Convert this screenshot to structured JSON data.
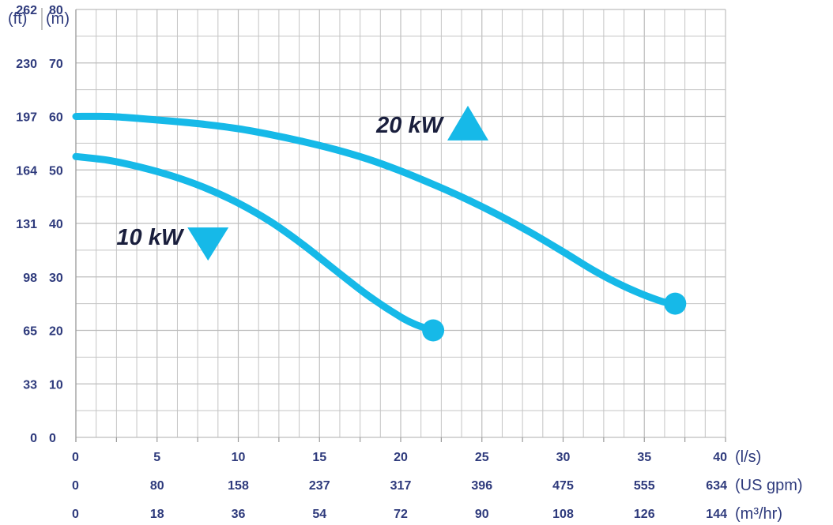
{
  "chart_data": {
    "type": "line",
    "title": "",
    "grid": true,
    "colors": {
      "curve": "#16b9e8",
      "text": "#2e3a7c",
      "label": "#1a1f3d",
      "grid": "#c4c4c4"
    },
    "x_axes": [
      {
        "unit": "(l/s)",
        "ticks": [
          "0",
          "5",
          "10",
          "15",
          "20",
          "25",
          "30",
          "35",
          "40"
        ]
      },
      {
        "unit": "(US gpm)",
        "ticks": [
          "0",
          "80",
          "158",
          "237",
          "317",
          "396",
          "475",
          "555",
          "634"
        ]
      },
      {
        "unit": "(m³/hr)",
        "ticks": [
          "0",
          "18",
          "36",
          "54",
          "72",
          "90",
          "108",
          "126",
          "144"
        ]
      }
    ],
    "y_axes": [
      {
        "unit": "(ft)",
        "ticks": [
          "0",
          "33",
          "65",
          "98",
          "131",
          "164",
          "197",
          "230",
          "262"
        ]
      },
      {
        "unit": "(m)",
        "ticks": [
          "0",
          "10",
          "20",
          "30",
          "40",
          "50",
          "60",
          "70",
          "80"
        ]
      }
    ],
    "xlim": [
      0,
      40
    ],
    "ylim": [
      0,
      80
    ],
    "series": [
      {
        "name": "10 kW",
        "marker": "triangle-down",
        "label_at": [
          2.5,
          36
        ],
        "points": [
          [
            0,
            52.5
          ],
          [
            2,
            51.8
          ],
          [
            4,
            50.5
          ],
          [
            6,
            48.8
          ],
          [
            8,
            46.6
          ],
          [
            10,
            43.8
          ],
          [
            12,
            40.3
          ],
          [
            14,
            36
          ],
          [
            16,
            31.2
          ],
          [
            18,
            26.5
          ],
          [
            20,
            22.5
          ],
          [
            21,
            21
          ],
          [
            22,
            20
          ]
        ]
      },
      {
        "name": "20 kW",
        "marker": "triangle-up",
        "label_at": [
          18.5,
          57
        ],
        "points": [
          [
            0,
            60
          ],
          [
            2,
            60
          ],
          [
            4,
            59.6
          ],
          [
            6,
            59.1
          ],
          [
            8,
            58.5
          ],
          [
            10,
            57.7
          ],
          [
            12,
            56.6
          ],
          [
            14,
            55.3
          ],
          [
            16,
            53.8
          ],
          [
            18,
            52
          ],
          [
            20,
            49.8
          ],
          [
            22,
            47.3
          ],
          [
            24,
            44.6
          ],
          [
            26,
            41.6
          ],
          [
            28,
            38.3
          ],
          [
            30,
            34.7
          ],
          [
            32,
            31
          ],
          [
            34,
            27.9
          ],
          [
            36,
            25.5
          ],
          [
            36.9,
            25
          ]
        ]
      }
    ]
  }
}
